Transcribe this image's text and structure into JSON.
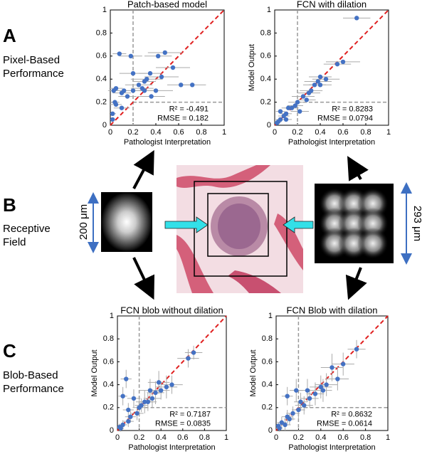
{
  "panels": [
    {
      "letter": "A",
      "caption": [
        "Pixel-Based",
        "Performance"
      ]
    },
    {
      "letter": "B",
      "caption": [
        "Receptive",
        "Field"
      ]
    },
    {
      "letter": "C",
      "caption": [
        "Blob-Based",
        "Performance"
      ]
    }
  ],
  "scale_labels": [
    "200 μm",
    "293 μm"
  ],
  "chart_data": [
    {
      "type": "scatter",
      "title": "Patch-based model",
      "xlabel": "Pathologist Interpretation",
      "color": "#4472c4",
      "line_color": "#e02020",
      "threshold": 0.2,
      "annotations": [
        "R² = -0.491",
        "RMSE = 0.182"
      ],
      "xlim": [
        0,
        1
      ],
      "ylim": [
        0,
        1
      ],
      "xticks": [
        0,
        0.2,
        0.4,
        0.6,
        0.8,
        1
      ],
      "yticks": [
        0,
        0.2,
        0.4,
        0.6,
        0.8,
        1
      ],
      "x": [
        0.02,
        0.03,
        0.05,
        0.05,
        0.08,
        0.1,
        0.1,
        0.12,
        0.15,
        0.18,
        0.2,
        0.2,
        0.25,
        0.28,
        0.3,
        0.32,
        0.35,
        0.36,
        0.4,
        0.42,
        0.45,
        0.48,
        0.55,
        0.62,
        0.72,
        0.02,
        0.04,
        0.3
      ],
      "values": [
        0.1,
        0.3,
        0.32,
        0.18,
        0.62,
        0.28,
        0.15,
        0.3,
        0.25,
        0.6,
        0.45,
        0.3,
        0.35,
        0.32,
        0.3,
        0.4,
        0.45,
        0.25,
        0.3,
        0.6,
        0.42,
        0.63,
        0.5,
        0.35,
        0.35,
        0.05,
        0.2,
        0.38
      ],
      "xerr": [
        0.03,
        0.05,
        0.06,
        0.05,
        0.06,
        0.08,
        0.07,
        0.1,
        0.08,
        0.1,
        0.12,
        0.1,
        0.12,
        0.1,
        0.12,
        0.14,
        0.1,
        0.12,
        0.15,
        0.12,
        0.15,
        0.15,
        0.15,
        0.12,
        0.12,
        0.02,
        0.04,
        0.1
      ]
    },
    {
      "type": "scatter",
      "title": "FCN with dilation",
      "xlabel": "Pathologist Interpretation",
      "ylabel": "Model Output",
      "color": "#4472c4",
      "line_color": "#e02020",
      "threshold": 0.2,
      "annotations": [
        "R² = 0.8283",
        "RMSE = 0.0794"
      ],
      "xlim": [
        0,
        1
      ],
      "ylim": [
        0,
        1
      ],
      "xticks": [
        0,
        0.2,
        0.4,
        0.6,
        0.8,
        1
      ],
      "yticks": [
        0,
        0.2,
        0.4,
        0.6,
        0.8,
        1
      ],
      "x": [
        0.72,
        0.6,
        0.55,
        0.45,
        0.4,
        0.38,
        0.35,
        0.32,
        0.3,
        0.28,
        0.25,
        0.2,
        0.18,
        0.15,
        0.12,
        0.1,
        0.08,
        0.05,
        0.03,
        0.02,
        0.05,
        0.1,
        0.22,
        0.4
      ],
      "values": [
        0.93,
        0.55,
        0.53,
        0.4,
        0.42,
        0.38,
        0.35,
        0.3,
        0.28,
        0.22,
        0.25,
        0.2,
        0.17,
        0.15,
        0.15,
        0.1,
        0.08,
        0.05,
        0.03,
        0.02,
        0.12,
        0.05,
        0.12,
        0.35
      ],
      "xerr": [
        0.12,
        0.15,
        0.12,
        0.12,
        0.1,
        0.12,
        0.1,
        0.1,
        0.1,
        0.08,
        0.1,
        0.08,
        0.07,
        0.06,
        0.06,
        0.05,
        0.05,
        0.04,
        0.03,
        0.02,
        0.04,
        0.05,
        0.08,
        0.1
      ]
    },
    {
      "type": "scatter",
      "title": "FCN blob without dilation",
      "xlabel": "Pathologist Interpretation",
      "ylabel": "Model Output",
      "color": "#4472c4",
      "line_color": "#e02020",
      "threshold": 0.2,
      "annotations": [
        "R² = 0.7187",
        "RMSE = 0.0835"
      ],
      "xlim": [
        0,
        1
      ],
      "ylim": [
        0,
        1
      ],
      "xticks": [
        0,
        0.2,
        0.4,
        0.6,
        0.8,
        1
      ],
      "yticks": [
        0,
        0.2,
        0.4,
        0.6,
        0.8,
        1
      ],
      "x": [
        0.7,
        0.65,
        0.5,
        0.45,
        0.4,
        0.38,
        0.35,
        0.32,
        0.3,
        0.28,
        0.25,
        0.22,
        0.2,
        0.18,
        0.15,
        0.12,
        0.1,
        0.08,
        0.05,
        0.03,
        0.02,
        0.05,
        0.1
      ],
      "values": [
        0.68,
        0.63,
        0.4,
        0.38,
        0.35,
        0.42,
        0.33,
        0.28,
        0.35,
        0.25,
        0.25,
        0.22,
        0.2,
        0.15,
        0.28,
        0.12,
        0.08,
        0.45,
        0.05,
        0.02,
        0.03,
        0.3,
        0.18
      ],
      "xerr": [
        0.08,
        0.1,
        0.1,
        0.1,
        0.08,
        0.1,
        0.08,
        0.08,
        0.1,
        0.08,
        0.08,
        0.06,
        0.06,
        0.06,
        0.06,
        0.05,
        0.05,
        0.05,
        0.04,
        0.03,
        0.02,
        0.04,
        0.05
      ],
      "yerr": [
        0.06,
        0.08,
        0.08,
        0.1,
        0.08,
        0.1,
        0.1,
        0.08,
        0.1,
        0.08,
        0.1,
        0.06,
        0.08,
        0.06,
        0.08,
        0.05,
        0.05,
        0.08,
        0.04,
        0.03,
        0.03,
        0.08,
        0.06
      ]
    },
    {
      "type": "scatter",
      "title": "FCN Blob with dilation",
      "xlabel": "Pathologist Interpretation",
      "ylabel": "Model Output",
      "color": "#4472c4",
      "line_color": "#e02020",
      "threshold": 0.2,
      "annotations": [
        "R² = 0.8632",
        "RMSE = 0.0614"
      ],
      "xlim": [
        0,
        1
      ],
      "ylim": [
        0,
        1
      ],
      "xticks": [
        0,
        0.2,
        0.4,
        0.6,
        0.8,
        1
      ],
      "yticks": [
        0,
        0.2,
        0.4,
        0.6,
        0.8,
        1
      ],
      "x": [
        0.72,
        0.6,
        0.55,
        0.5,
        0.45,
        0.42,
        0.4,
        0.35,
        0.3,
        0.28,
        0.25,
        0.22,
        0.2,
        0.15,
        0.12,
        0.1,
        0.08,
        0.05,
        0.03,
        0.02,
        0.18,
        0.1
      ],
      "values": [
        0.71,
        0.58,
        0.45,
        0.55,
        0.4,
        0.35,
        0.38,
        0.32,
        0.28,
        0.35,
        0.22,
        0.25,
        0.18,
        0.15,
        0.1,
        0.12,
        0.05,
        0.07,
        0.02,
        0.04,
        0.35,
        0.3
      ],
      "xerr": [
        0.08,
        0.1,
        0.1,
        0.1,
        0.1,
        0.08,
        0.1,
        0.08,
        0.08,
        0.08,
        0.08,
        0.06,
        0.06,
        0.06,
        0.05,
        0.05,
        0.05,
        0.04,
        0.03,
        0.02,
        0.06,
        0.05
      ],
      "yerr": [
        0.08,
        0.1,
        0.1,
        0.12,
        0.1,
        0.1,
        0.1,
        0.1,
        0.08,
        0.1,
        0.08,
        0.08,
        0.08,
        0.06,
        0.05,
        0.06,
        0.05,
        0.05,
        0.03,
        0.03,
        0.1,
        0.08
      ]
    }
  ]
}
